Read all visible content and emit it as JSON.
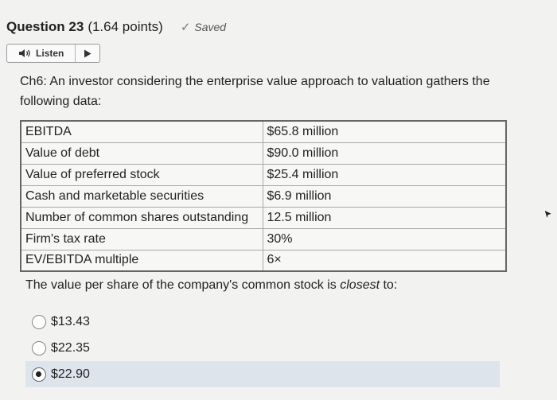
{
  "header": {
    "title": "Question 23",
    "points": "(1.64 points)",
    "saved_label": "Saved"
  },
  "listen": {
    "label": "Listen"
  },
  "prompt": "Ch6: An investor considering the enterprise value approach to valuation gathers the following data:",
  "table": {
    "rows": [
      {
        "label": "EBITDA",
        "value": "$65.8 million"
      },
      {
        "label": "Value of debt",
        "value": "$90.0 million"
      },
      {
        "label": "Value of preferred stock",
        "value": "$25.4 million"
      },
      {
        "label": "Cash and marketable securities",
        "value": "$6.9 million"
      },
      {
        "label": "Number of common shares outstanding",
        "value": "12.5 million"
      },
      {
        "label": "Firm's tax rate",
        "value": "30%"
      },
      {
        "label": "EV/EBITDA multiple",
        "value": "6×"
      }
    ]
  },
  "question": {
    "before": "The value per share of the company's common stock is ",
    "emphasis": "closest",
    "after": " to:"
  },
  "options": [
    {
      "label": "$13.43",
      "selected": false
    },
    {
      "label": "$22.35",
      "selected": false
    },
    {
      "label": "$22.90",
      "selected": true
    }
  ]
}
